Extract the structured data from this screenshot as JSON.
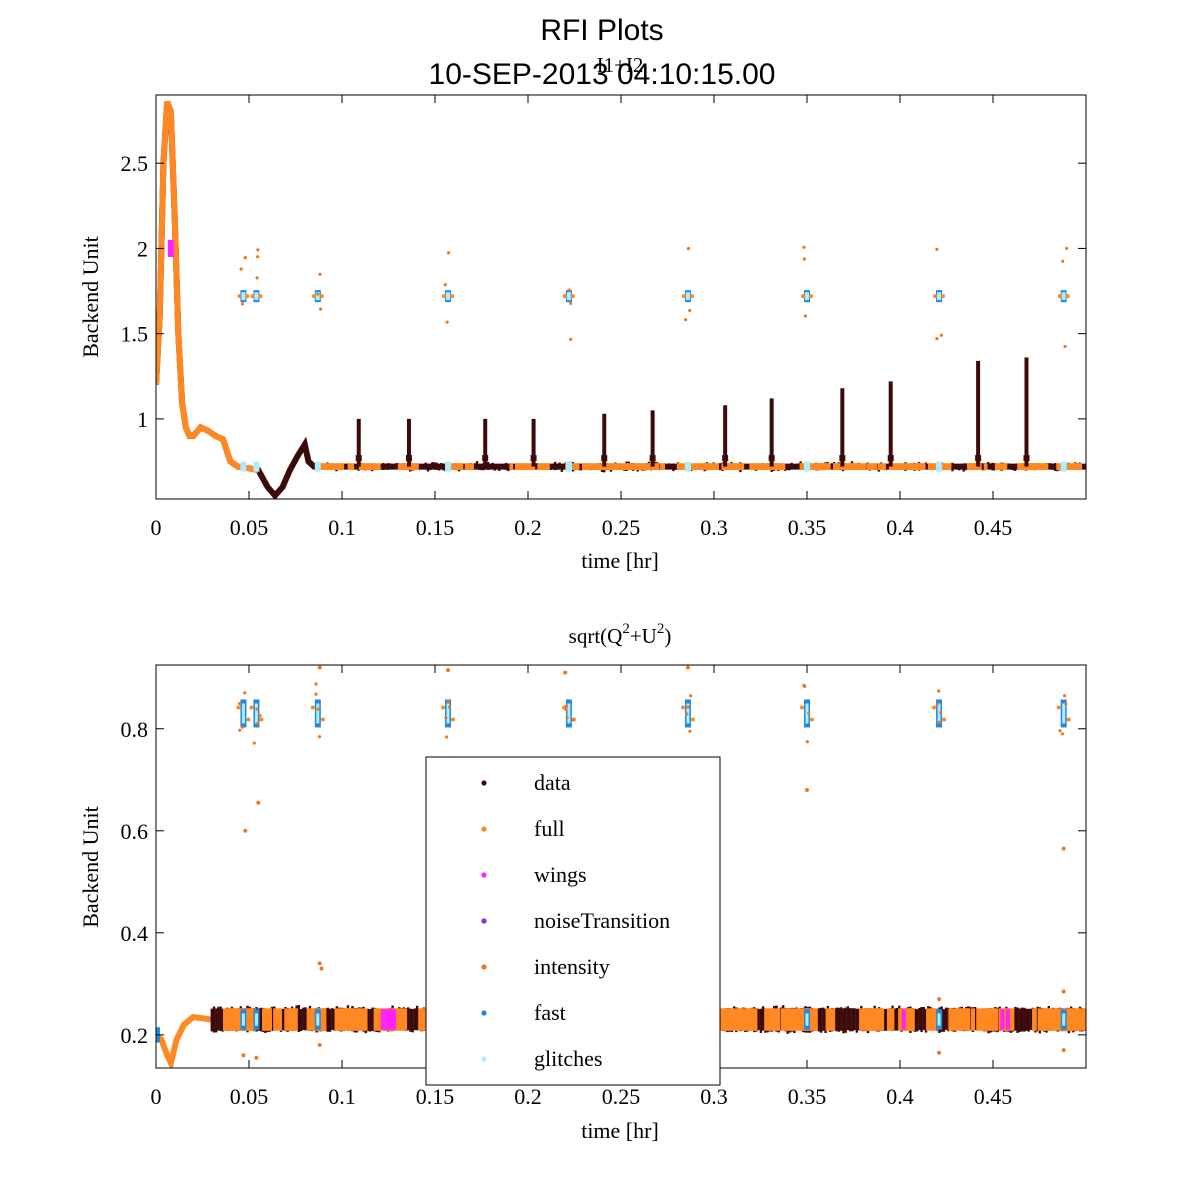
{
  "figure": {
    "title": "RFI Plots",
    "subtitle": "10-SEP-2013 04:10:15.00"
  },
  "colors": {
    "data": "#3d0a0a",
    "full": "#ff8822",
    "wings": "#ff22ff",
    "noiseTransition": "#8a2be2",
    "intensity": "#ee7722",
    "fast": "#2288dd",
    "glitches": "#aaeeff"
  },
  "chart_data": [
    {
      "type": "scatter",
      "title": "I1+I2",
      "xlabel": "time [hr]",
      "ylabel": "Backend Unit",
      "xlim": [
        0,
        0.5
      ],
      "ylim": [
        0.53,
        2.9
      ],
      "xticks": [
        "0",
        "0.05",
        "0.1",
        "0.15",
        "0.2",
        "0.25",
        "0.3",
        "0.35",
        "0.4",
        "0.45"
      ],
      "yticks": [
        "1",
        "1.5",
        "2",
        "2.5"
      ],
      "baseline": 0.72,
      "initial_curve": [
        [
          0.0,
          1.2
        ],
        [
          0.002,
          1.6
        ],
        [
          0.004,
          2.5
        ],
        [
          0.006,
          2.86
        ],
        [
          0.008,
          2.8
        ],
        [
          0.01,
          2.2
        ],
        [
          0.012,
          1.5
        ],
        [
          0.014,
          1.1
        ],
        [
          0.016,
          0.95
        ],
        [
          0.018,
          0.9
        ],
        [
          0.02,
          0.9
        ],
        [
          0.024,
          0.95
        ],
        [
          0.028,
          0.93
        ],
        [
          0.032,
          0.9
        ],
        [
          0.036,
          0.88
        ],
        [
          0.04,
          0.75
        ],
        [
          0.044,
          0.72
        ],
        [
          0.05,
          0.71
        ],
        [
          0.055,
          0.7
        ],
        [
          0.06,
          0.6
        ],
        [
          0.064,
          0.55
        ],
        [
          0.068,
          0.6
        ],
        [
          0.072,
          0.7
        ],
        [
          0.076,
          0.78
        ],
        [
          0.08,
          0.85
        ],
        [
          0.082,
          0.75
        ],
        [
          0.085,
          0.72
        ],
        [
          0.09,
          0.72
        ],
        [
          0.5,
          0.72
        ]
      ],
      "data_spikes": [
        [
          0.109,
          1.0
        ],
        [
          0.136,
          1.0
        ],
        [
          0.177,
          1.0
        ],
        [
          0.203,
          1.0
        ],
        [
          0.241,
          1.03
        ],
        [
          0.267,
          1.05
        ],
        [
          0.306,
          1.08
        ],
        [
          0.331,
          1.12
        ],
        [
          0.369,
          1.18
        ],
        [
          0.395,
          1.22
        ],
        [
          0.442,
          1.34
        ],
        [
          0.468,
          1.36
        ]
      ],
      "flag_clusters_x": [
        0.047,
        0.054,
        0.087,
        0.157,
        0.222,
        0.286,
        0.35,
        0.421,
        0.488
      ],
      "flag_cluster_y": 1.72
    },
    {
      "type": "scatter",
      "title": "sqrt(Q^2+U^2)",
      "title_base": "sqrt(Q",
      "title_sup1": "2",
      "title_mid": "+U",
      "title_sup2": "2",
      "title_end": ")",
      "xlabel": "time [hr]",
      "ylabel": "Backend Unit",
      "xlim": [
        0,
        0.5
      ],
      "ylim": [
        0.135,
        0.925
      ],
      "xticks": [
        "0",
        "0.05",
        "0.1",
        "0.15",
        "0.2",
        "0.25",
        "0.3",
        "0.35",
        "0.4",
        "0.45"
      ],
      "yticks": [
        "0.2",
        "0.4",
        "0.6",
        "0.8"
      ],
      "baseline": 0.23,
      "flag_clusters_x": [
        0.047,
        0.054,
        0.087,
        0.157,
        0.222,
        0.286,
        0.35,
        0.421,
        0.488
      ],
      "flag_cluster_y": 0.83,
      "outliers": [
        [
          0.048,
          0.6
        ],
        [
          0.055,
          0.655
        ],
        [
          0.35,
          0.68
        ],
        [
          0.488,
          0.565
        ],
        [
          0.088,
          0.34
        ],
        [
          0.089,
          0.33
        ],
        [
          0.088,
          0.92
        ],
        [
          0.157,
          0.915
        ],
        [
          0.22,
          0.91
        ],
        [
          0.286,
          0.92
        ]
      ]
    }
  ],
  "legend": {
    "entries": [
      {
        "label": "data",
        "key": "data"
      },
      {
        "label": "full",
        "key": "full"
      },
      {
        "label": "wings",
        "key": "wings"
      },
      {
        "label": "noiseTransition",
        "key": "noiseTransition"
      },
      {
        "label": "intensity",
        "key": "intensity"
      },
      {
        "label": "fast",
        "key": "fast"
      },
      {
        "label": "glitches",
        "key": "glitches"
      }
    ]
  }
}
